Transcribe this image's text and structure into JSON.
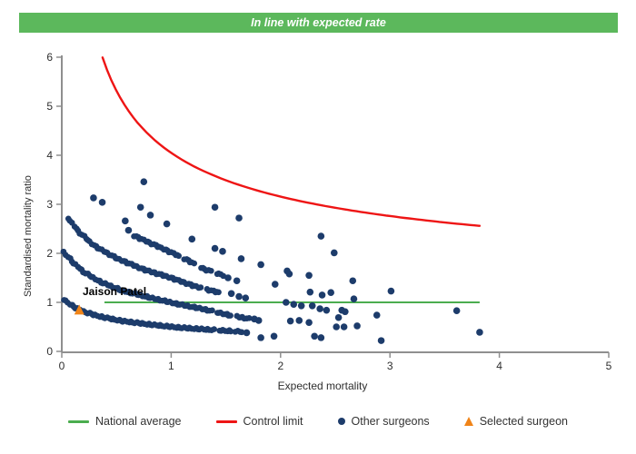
{
  "header": {
    "title": "In line with expected rate",
    "bg_color": "#5cb85c",
    "text_color": "#ffffff"
  },
  "chart_data": {
    "type": "scatter",
    "title": "",
    "xlabel": "Expected mortality",
    "ylabel": "Standardised mortality ratio",
    "xlim": [
      0,
      5
    ],
    "ylim": [
      0,
      6
    ],
    "x_ticks": [
      0,
      1,
      2,
      3,
      4,
      5
    ],
    "y_ticks": [
      0,
      1,
      2,
      3,
      4,
      5,
      6
    ],
    "grid": "off",
    "axis_color": "#8f8f8f",
    "tick_label_color": "#2e2e2e",
    "national_average": {
      "y": 1.0,
      "x_start": 0.39,
      "x_end": 3.82,
      "color": "#4bad4f"
    },
    "control_limit": {
      "formula": "y = 1 + 3.05/sqrt(x)",
      "coeff": 3.05,
      "x_start": 0.373,
      "x_end": 3.82,
      "y_end": 2.56,
      "color": "#ee1515"
    },
    "selected_surgeon": {
      "label": "Jaison Patel",
      "x": 0.16,
      "y": 0.845,
      "color": "#f08418"
    },
    "other_surgeons_color": "#1d3c6b",
    "bands": [
      {
        "name": "deaths-band-1",
        "points": [
          [
            0.02,
            1.06
          ],
          [
            0.1,
            0.92
          ],
          [
            0.2,
            0.81
          ],
          [
            0.35,
            0.71
          ],
          [
            0.55,
            0.62
          ],
          [
            0.8,
            0.55
          ],
          [
            1.05,
            0.49
          ],
          [
            1.3,
            0.45
          ],
          [
            1.65,
            0.4
          ]
        ],
        "segments": [
          [
            0.02,
            1.4
          ],
          [
            1.44,
            1.56
          ],
          [
            1.59,
            1.65
          ]
        ]
      },
      {
        "name": "deaths-band-2",
        "points": [
          [
            0.02,
            2.02
          ],
          [
            0.1,
            1.82
          ],
          [
            0.2,
            1.62
          ],
          [
            0.35,
            1.42
          ],
          [
            0.55,
            1.24
          ],
          [
            0.8,
            1.1
          ],
          [
            1.05,
            0.97
          ],
          [
            1.3,
            0.86
          ],
          [
            1.55,
            0.73
          ],
          [
            1.8,
            0.63
          ]
        ],
        "segments": [
          [
            0.02,
            1.38
          ],
          [
            1.42,
            1.55
          ],
          [
            1.6,
            1.72
          ]
        ]
      },
      {
        "name": "deaths-band-3",
        "points": [
          [
            0.06,
            2.72
          ],
          [
            0.15,
            2.45
          ],
          [
            0.3,
            2.15
          ],
          [
            0.5,
            1.9
          ],
          [
            0.75,
            1.67
          ],
          [
            1.0,
            1.5
          ],
          [
            1.2,
            1.34
          ],
          [
            1.45,
            1.19
          ]
        ],
        "segments": [
          [
            0.06,
            1.28
          ],
          [
            1.33,
            1.45
          ]
        ]
      },
      {
        "name": "deaths-band-4",
        "points": [
          [
            0.66,
            2.36
          ],
          [
            0.8,
            2.22
          ],
          [
            1.0,
            2.02
          ],
          [
            1.15,
            1.86
          ],
          [
            1.3,
            1.68
          ],
          [
            1.48,
            1.55
          ]
        ],
        "segments": [
          [
            0.66,
            1.08
          ],
          [
            1.12,
            1.22
          ],
          [
            1.27,
            1.37
          ],
          [
            1.42,
            1.48
          ]
        ]
      }
    ],
    "scatter": [
      [
        0.29,
        3.13
      ],
      [
        0.37,
        3.04
      ],
      [
        0.58,
        2.66
      ],
      [
        0.61,
        2.47
      ],
      [
        0.72,
        2.94
      ],
      [
        0.75,
        3.46
      ],
      [
        0.81,
        2.78
      ],
      [
        0.96,
        2.6
      ],
      [
        1.19,
        2.29
      ],
      [
        1.4,
        2.94
      ],
      [
        1.62,
        2.72
      ],
      [
        1.4,
        2.1
      ],
      [
        1.47,
        2.04
      ],
      [
        1.64,
        1.89
      ],
      [
        1.82,
        1.77
      ],
      [
        2.06,
        1.64
      ],
      [
        2.37,
        2.35
      ],
      [
        2.49,
        2.01
      ],
      [
        2.26,
        1.55
      ],
      [
        2.08,
        1.58
      ],
      [
        1.95,
        1.37
      ],
      [
        2.27,
        1.21
      ],
      [
        2.38,
        1.15
      ],
      [
        2.46,
        1.2
      ],
      [
        2.66,
        1.44
      ],
      [
        3.01,
        1.23
      ],
      [
        2.67,
        1.07
      ],
      [
        2.05,
        1.0
      ],
      [
        2.12,
        0.96
      ],
      [
        2.19,
        0.93
      ],
      [
        2.29,
        0.93
      ],
      [
        2.36,
        0.87
      ],
      [
        2.42,
        0.84
      ],
      [
        2.56,
        0.84
      ],
      [
        2.59,
        0.81
      ],
      [
        2.88,
        0.74
      ],
      [
        3.61,
        0.83
      ],
      [
        2.09,
        0.62
      ],
      [
        2.17,
        0.63
      ],
      [
        2.26,
        0.59
      ],
      [
        2.51,
        0.5
      ],
      [
        2.58,
        0.5
      ],
      [
        2.7,
        0.52
      ],
      [
        1.69,
        0.38
      ],
      [
        1.82,
        0.28
      ],
      [
        1.94,
        0.31
      ],
      [
        2.31,
        0.31
      ],
      [
        2.37,
        0.28
      ],
      [
        2.92,
        0.22
      ],
      [
        3.82,
        0.39
      ],
      [
        2.53,
        0.69
      ],
      [
        1.52,
        1.5
      ],
      [
        1.6,
        1.44
      ],
      [
        1.55,
        1.18
      ],
      [
        1.62,
        1.12
      ],
      [
        1.68,
        1.09
      ],
      [
        1.76,
        0.66
      ],
      [
        1.8,
        0.63
      ]
    ]
  },
  "legend": {
    "items": [
      {
        "label": "National average",
        "marker": "green-line",
        "color": "#4bad4f"
      },
      {
        "label": "Control limit",
        "marker": "red-line",
        "color": "#ee1515"
      },
      {
        "label": "Other surgeons",
        "marker": "navy-dot",
        "color": "#1d3c6b"
      },
      {
        "label": "Selected surgeon",
        "marker": "orange-triangle",
        "color": "#f08418"
      }
    ]
  }
}
